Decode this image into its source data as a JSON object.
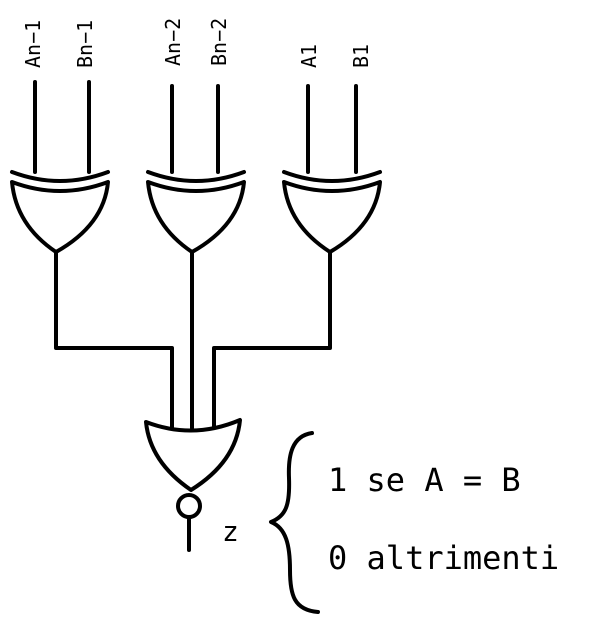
{
  "diagram": {
    "inputs": {
      "an1": "An−1",
      "bn1": "Bn−1",
      "an2": "An−2",
      "bn2": "Bn−2",
      "a1": "A1",
      "b1": "B1"
    },
    "gates": {
      "xor_count": 3,
      "final_gate": "NOR"
    },
    "output": {
      "label": "z"
    },
    "cases": {
      "equal": "1 se A = B",
      "otherwise": "0 altrimenti"
    }
  }
}
